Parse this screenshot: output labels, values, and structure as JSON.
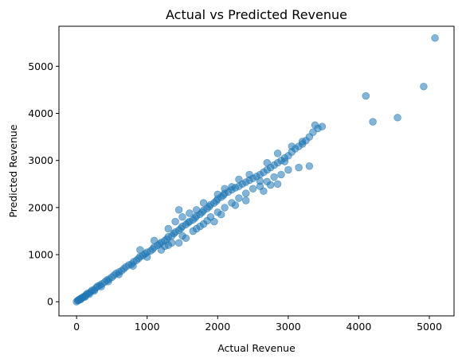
{
  "chart_data": {
    "type": "scatter",
    "title": "Actual vs Predicted Revenue",
    "xlabel": "Actual Revenue",
    "ylabel": "Predicted Revenue",
    "xlim": [
      -250,
      5350
    ],
    "ylim": [
      -300,
      5850
    ],
    "xticks": [
      0,
      1000,
      2000,
      3000,
      4000,
      5000
    ],
    "yticks": [
      0,
      1000,
      2000,
      3000,
      4000,
      5000
    ],
    "xtick_labels": [
      "0",
      "1000",
      "2000",
      "3000",
      "4000",
      "5000"
    ],
    "ytick_labels": [
      "0",
      "1000",
      "2000",
      "3000",
      "4000",
      "5000"
    ],
    "grid": false,
    "marker_color": "#1f77b4",
    "marker_alpha": 0.55,
    "series": [
      {
        "points": [
          [
            0,
            0
          ],
          [
            15,
            25
          ],
          [
            25,
            30
          ],
          [
            35,
            45
          ],
          [
            50,
            55
          ],
          [
            70,
            80
          ],
          [
            90,
            95
          ],
          [
            110,
            115
          ],
          [
            130,
            140
          ],
          [
            150,
            170
          ],
          [
            170,
            180
          ],
          [
            200,
            210
          ],
          [
            220,
            240
          ],
          [
            250,
            260
          ],
          [
            280,
            300
          ],
          [
            300,
            330
          ],
          [
            330,
            350
          ],
          [
            360,
            380
          ],
          [
            400,
            420
          ],
          [
            430,
            460
          ],
          [
            460,
            480
          ],
          [
            500,
            520
          ],
          [
            530,
            560
          ],
          [
            560,
            600
          ],
          [
            600,
            630
          ],
          [
            640,
            660
          ],
          [
            670,
            700
          ],
          [
            700,
            740
          ],
          [
            740,
            780
          ],
          [
            780,
            800
          ],
          [
            810,
            850
          ],
          [
            850,
            880
          ],
          [
            880,
            920
          ],
          [
            900,
            960
          ],
          [
            940,
            980
          ],
          [
            970,
            1020
          ],
          [
            1000,
            1050
          ],
          [
            1050,
            1080
          ],
          [
            1080,
            1120
          ],
          [
            1100,
            1160
          ],
          [
            1150,
            1200
          ],
          [
            1180,
            1230
          ],
          [
            1200,
            1260
          ],
          [
            1250,
            1300
          ],
          [
            1280,
            1330
          ],
          [
            1300,
            1380
          ],
          [
            1350,
            1400
          ],
          [
            1380,
            1450
          ],
          [
            1400,
            1480
          ],
          [
            1450,
            1520
          ],
          [
            1480,
            1560
          ],
          [
            1500,
            1600
          ],
          [
            1550,
            1640
          ],
          [
            1580,
            1680
          ],
          [
            1600,
            1700
          ],
          [
            1650,
            1740
          ],
          [
            1680,
            1780
          ],
          [
            1700,
            1820
          ],
          [
            1750,
            1860
          ],
          [
            1780,
            1900
          ],
          [
            1800,
            1940
          ],
          [
            1850,
            1980
          ],
          [
            1880,
            2020
          ],
          [
            1900,
            2060
          ],
          [
            1950,
            2100
          ],
          [
            1980,
            2140
          ],
          [
            2000,
            2180
          ],
          [
            2050,
            2220
          ],
          [
            2080,
            2260
          ],
          [
            2100,
            2300
          ],
          [
            2150,
            2330
          ],
          [
            2200,
            2380
          ],
          [
            2250,
            2420
          ],
          [
            2300,
            2450
          ],
          [
            2350,
            2500
          ],
          [
            2400,
            2540
          ],
          [
            2450,
            2580
          ],
          [
            2500,
            2620
          ],
          [
            2550,
            2660
          ],
          [
            2600,
            2700
          ],
          [
            2650,
            2750
          ],
          [
            2700,
            2800
          ],
          [
            2750,
            2850
          ],
          [
            2800,
            2900
          ],
          [
            2850,
            2950
          ],
          [
            2900,
            3000
          ],
          [
            2950,
            3050
          ],
          [
            3000,
            3100
          ],
          [
            3050,
            3180
          ],
          [
            3100,
            3250
          ],
          [
            3150,
            3300
          ],
          [
            3200,
            3350
          ],
          [
            3250,
            3420
          ],
          [
            3300,
            3500
          ],
          [
            3350,
            3600
          ],
          [
            3420,
            3680
          ],
          [
            3480,
            3720
          ],
          [
            3380,
            3750
          ],
          [
            1200,
            1100
          ],
          [
            1300,
            1200
          ],
          [
            1500,
            1400
          ],
          [
            1700,
            1550
          ],
          [
            1800,
            1650
          ],
          [
            1900,
            1800
          ],
          [
            2000,
            1900
          ],
          [
            2100,
            2000
          ],
          [
            2200,
            2100
          ],
          [
            2300,
            2200
          ],
          [
            2400,
            2300
          ],
          [
            2500,
            2400
          ],
          [
            2600,
            2450
          ],
          [
            2700,
            2550
          ],
          [
            2800,
            2650
          ],
          [
            2900,
            2700
          ],
          [
            3000,
            2800
          ],
          [
            3150,
            2850
          ],
          [
            3300,
            2880
          ],
          [
            900,
            1100
          ],
          [
            1100,
            1300
          ],
          [
            1300,
            1550
          ],
          [
            1400,
            1700
          ],
          [
            1450,
            1950
          ],
          [
            1500,
            1800
          ],
          [
            1600,
            1880
          ],
          [
            1700,
            1950
          ],
          [
            1800,
            2100
          ],
          [
            2000,
            2280
          ],
          [
            2100,
            2400
          ],
          [
            2300,
            2600
          ],
          [
            2450,
            2700
          ],
          [
            2700,
            2950
          ],
          [
            2850,
            3150
          ],
          [
            3050,
            3300
          ],
          [
            3200,
            3400
          ],
          [
            2950,
            2980
          ],
          [
            1450,
            1250
          ],
          [
            1650,
            1500
          ],
          [
            1850,
            1720
          ],
          [
            2050,
            1850
          ],
          [
            2250,
            2050
          ],
          [
            2400,
            2150
          ],
          [
            2650,
            2350
          ],
          [
            2850,
            2500
          ],
          [
            2750,
            2480
          ],
          [
            2600,
            2560
          ],
          [
            2200,
            2440
          ],
          [
            1950,
            1700
          ],
          [
            1750,
            1600
          ],
          [
            1550,
            1350
          ],
          [
            1350,
            1250
          ],
          [
            1250,
            1180
          ],
          [
            1000,
            950
          ],
          [
            800,
            760
          ],
          [
            600,
            580
          ],
          [
            450,
            430
          ],
          [
            350,
            320
          ],
          [
            250,
            230
          ],
          [
            180,
            160
          ],
          [
            120,
            100
          ],
          [
            60,
            50
          ],
          [
            4100,
            4370
          ],
          [
            4200,
            3820
          ],
          [
            4550,
            3910
          ],
          [
            4920,
            4570
          ],
          [
            5080,
            5600
          ]
        ]
      }
    ]
  }
}
